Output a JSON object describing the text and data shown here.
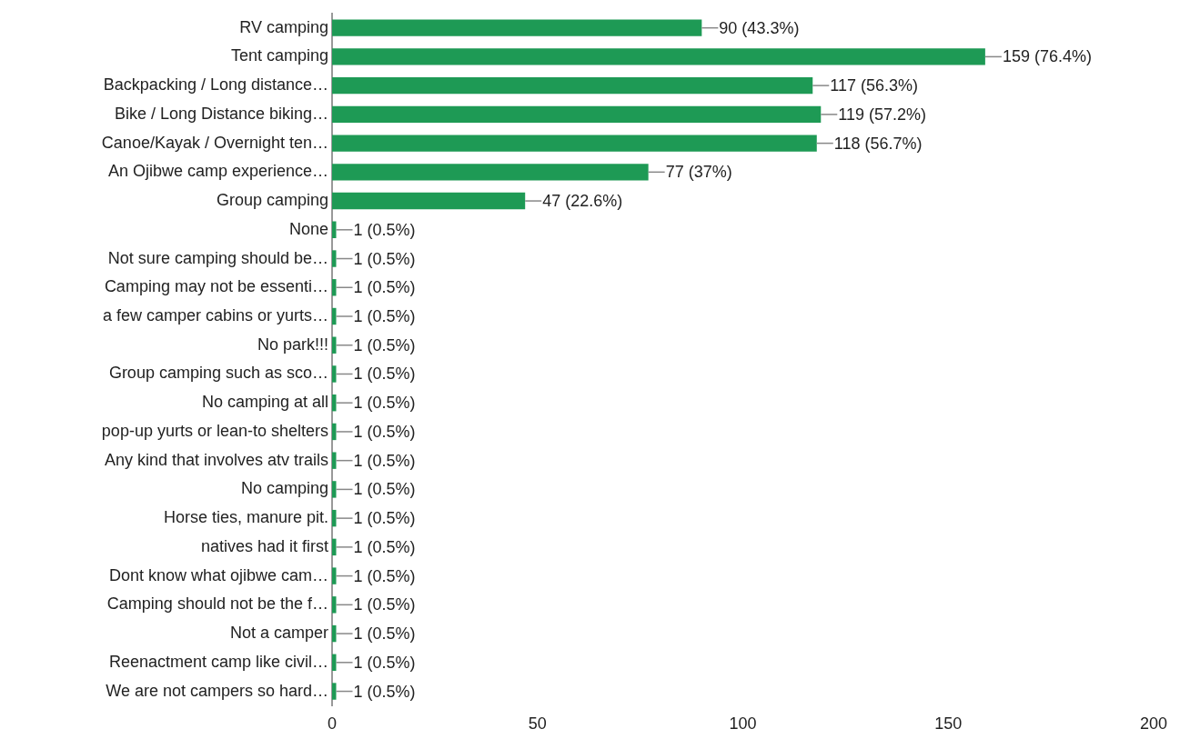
{
  "chart_data": {
    "type": "bar",
    "orientation": "horizontal",
    "color": "#1e9a55",
    "grid": false,
    "legend": false,
    "categories": [
      "RV camping",
      "Tent camping",
      "Backpacking / Long distance…",
      "Bike / Long Distance biking…",
      "Canoe/Kayak / Overnight ten…",
      "An Ojibwe camp experience…",
      "Group camping",
      "None",
      "Not sure camping should be…",
      "Camping may not be essenti…",
      "a few camper cabins or yurts…",
      "No park!!!",
      "Group camping such as sco…",
      "No camping at all",
      "pop-up yurts or lean-to shelters",
      "Any kind that involves atv trails",
      "No camping",
      "Horse ties, manure pit.",
      "natives had it first",
      "Dont know what ojibwe cam…",
      "Camping should not be the f…",
      "Not a camper",
      "Reenactment camp like civil…",
      "We are not campers so hard…"
    ],
    "values": [
      90,
      159,
      117,
      119,
      118,
      77,
      47,
      1,
      1,
      1,
      1,
      1,
      1,
      1,
      1,
      1,
      1,
      1,
      1,
      1,
      1,
      1,
      1,
      1
    ],
    "value_labels": [
      "90 (43.3%)",
      "159 (76.4%)",
      "117 (56.3%)",
      "119 (57.2%)",
      "118 (56.7%)",
      "77 (37%)",
      "47 (22.6%)",
      "1 (0.5%)",
      "1 (0.5%)",
      "1 (0.5%)",
      "1 (0.5%)",
      "1 (0.5%)",
      "1 (0.5%)",
      "1 (0.5%)",
      "1 (0.5%)",
      "1 (0.5%)",
      "1 (0.5%)",
      "1 (0.5%)",
      "1 (0.5%)",
      "1 (0.5%)",
      "1 (0.5%)",
      "1 (0.5%)",
      "1 (0.5%)",
      "1 (0.5%)"
    ],
    "xlim": [
      0,
      200
    ],
    "xticks": [
      0,
      50,
      100,
      150,
      200
    ]
  }
}
